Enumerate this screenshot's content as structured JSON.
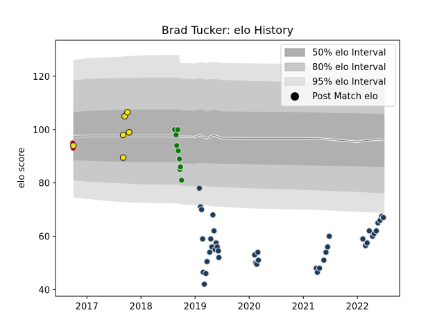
{
  "chart_data": {
    "type": "scatter",
    "title": "Brad Tucker: elo History",
    "xlabel": "",
    "ylabel": "elo score",
    "xlim": [
      2016.42,
      2022.78
    ],
    "ylim": [
      37.5,
      133.5
    ],
    "x_ticks": [
      2017,
      2018,
      2019,
      2020,
      2021,
      2022
    ],
    "x_tick_labels": [
      "2017",
      "2018",
      "2019",
      "2020",
      "2021",
      "2022"
    ],
    "y_ticks": [
      40,
      60,
      80,
      100,
      120
    ],
    "y_tick_labels": [
      "40",
      "60",
      "80",
      "100",
      "120"
    ],
    "grid": false,
    "legend_position": "top-right",
    "legend": [
      {
        "label": "50% elo Interval",
        "kind": "band",
        "color": "#b0b0b0"
      },
      {
        "label": "80% elo Interval",
        "kind": "band",
        "color": "#c9c9c9"
      },
      {
        "label": "95% elo Interval",
        "kind": "band",
        "color": "#e1e1e1"
      },
      {
        "label": "Post Match elo",
        "kind": "marker",
        "color": "#000000"
      }
    ],
    "bands": {
      "x": [
        2016.75,
        2017.0,
        2017.5,
        2018.0,
        2018.7,
        2018.72,
        2019.0,
        2019.1,
        2019.2,
        2019.35,
        2019.5,
        2020.0,
        2020.5,
        2021.0,
        2021.3,
        2021.5,
        2022.0,
        2022.2,
        2022.4,
        2022.5
      ],
      "median": [
        97.5,
        97.6,
        97.6,
        97.6,
        97.6,
        97.3,
        97.2,
        98.0,
        96.8,
        97.8,
        96.8,
        96.7,
        96.7,
        96.7,
        96.6,
        96.3,
        95.4,
        96.0,
        96.3,
        96.0
      ],
      "p50_low": [
        88.5,
        88.3,
        88.0,
        87.8,
        87.7,
        87.4,
        87.2,
        87.5,
        87.4,
        87.3,
        87.2,
        87.0,
        86.8,
        86.6,
        86.5,
        86.4,
        86.2,
        86.1,
        86.0,
        85.8
      ],
      "p50_high": [
        106.5,
        107.0,
        107.3,
        107.5,
        107.5,
        107.2,
        107.1,
        107.6,
        106.8,
        107.4,
        106.8,
        106.7,
        106.6,
        106.5,
        106.4,
        106.3,
        106.1,
        106.0,
        105.9,
        105.8
      ],
      "p80_low": [
        81.0,
        80.5,
        80.0,
        79.5,
        79.3,
        79.0,
        78.8,
        79.0,
        78.8,
        78.6,
        78.4,
        78.0,
        77.7,
        77.4,
        77.2,
        77.0,
        76.6,
        76.4,
        76.2,
        76.0
      ],
      "p80_high": [
        118.5,
        119.0,
        119.3,
        119.5,
        119.5,
        119.2,
        118.8,
        119.2,
        118.7,
        119.0,
        118.6,
        118.2,
        118.0,
        117.8,
        117.6,
        117.5,
        117.2,
        117.0,
        116.8,
        116.5
      ],
      "p95_low": [
        74.5,
        74.0,
        73.0,
        72.5,
        72.3,
        72.0,
        71.7,
        72.0,
        71.6,
        71.2,
        71.0,
        70.5,
        70.2,
        70.0,
        69.8,
        69.6,
        69.2,
        69.0,
        68.8,
        68.5
      ],
      "p95_high": [
        126.0,
        126.8,
        127.2,
        127.8,
        128.0,
        125.0,
        124.8,
        125.4,
        125.0,
        125.4,
        125.0,
        124.8,
        124.7,
        124.6,
        124.5,
        124.4,
        124.2,
        124.1,
        124.0,
        123.8
      ]
    },
    "series": [
      {
        "color": "#e00000",
        "x": [
          2016.74,
          2016.75,
          2016.75
        ],
        "y": [
          95.0,
          93.5,
          93.0
        ]
      },
      {
        "color": "#f2e30a",
        "x": [
          2016.75,
          2017.67,
          2017.67,
          2017.7,
          2017.75,
          2017.78
        ],
        "y": [
          94.0,
          89.5,
          98.0,
          105.0,
          106.5,
          99.0
        ]
      },
      {
        "color": "#0a7a0a",
        "x": [
          2018.62,
          2018.65,
          2018.66,
          2018.68,
          2018.69,
          2018.71,
          2018.72,
          2018.73,
          2018.75
        ],
        "y": [
          100.0,
          98.0,
          94.0,
          100.0,
          92.0,
          89.0,
          85.0,
          86.0,
          81.0
        ]
      },
      {
        "color": "#1c3a5c",
        "x": [
          2019.08,
          2019.1,
          2019.12,
          2019.14,
          2019.15,
          2019.17,
          2019.2,
          2019.22,
          2019.27,
          2019.29,
          2019.31,
          2019.33,
          2019.35,
          2019.37,
          2019.39,
          2019.41,
          2019.43,
          2019.44,
          2020.1,
          2020.12,
          2020.14,
          2020.16,
          2020.17,
          2021.24,
          2021.26,
          2021.3,
          2021.38,
          2021.42,
          2021.45,
          2021.48,
          2022.1,
          2022.15,
          2022.18,
          2022.22,
          2022.28,
          2022.31,
          2022.35,
          2022.38,
          2022.42,
          2022.45,
          2022.48
        ],
        "y": [
          78.0,
          71.0,
          70.0,
          59.0,
          46.5,
          42.0,
          46.0,
          50.5,
          54.0,
          59.0,
          56.0,
          68.0,
          62.0,
          55.0,
          57.5,
          56.0,
          54.5,
          52.0,
          53.0,
          50.0,
          49.5,
          54.0,
          51.0,
          48.0,
          46.5,
          48.0,
          51.0,
          54.0,
          56.0,
          60.0,
          59.0,
          56.5,
          57.5,
          62.0,
          60.0,
          61.0,
          62.0,
          65.0,
          66.0,
          67.5,
          67.0
        ]
      }
    ]
  }
}
